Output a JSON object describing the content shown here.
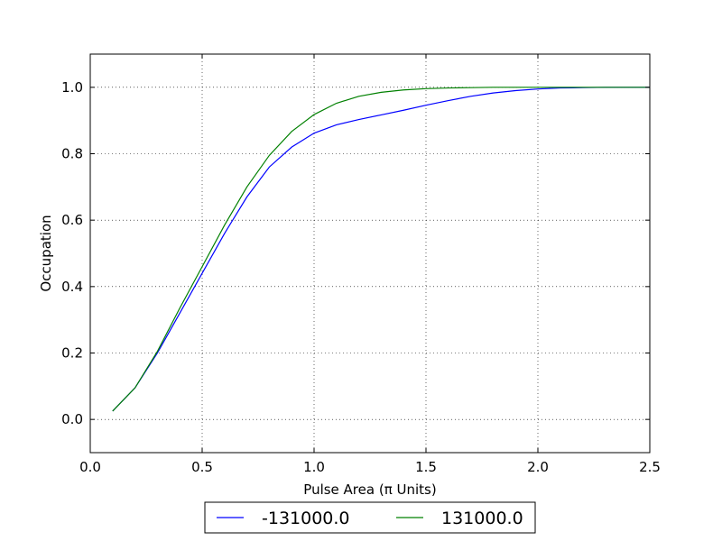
{
  "chart_data": {
    "type": "line",
    "title": "",
    "xlabel": "Pulse Area (π Units)",
    "ylabel": "Occupation",
    "xlim": [
      0.0,
      2.5
    ],
    "ylim": [
      -0.1,
      1.1
    ],
    "x_ticks": [
      "0.0",
      "0.5",
      "1.0",
      "1.5",
      "2.0",
      "2.5"
    ],
    "y_ticks": [
      "0.0",
      "0.2",
      "0.4",
      "0.6",
      "0.8",
      "1.0"
    ],
    "grid": true,
    "legend_placement": "below plot, centered",
    "x": [
      0.1,
      0.2,
      0.3,
      0.4,
      0.5,
      0.6,
      0.7,
      0.8,
      0.9,
      1.0,
      1.1,
      1.2,
      1.3,
      1.4,
      1.5,
      1.6,
      1.7,
      1.8,
      1.9,
      2.0,
      2.1,
      2.2,
      2.3,
      2.4,
      2.5
    ],
    "series": [
      {
        "name": "-131000.0",
        "color": "#0000ff",
        "values": [
          0.025,
          0.095,
          0.2,
          0.32,
          0.44,
          0.56,
          0.67,
          0.76,
          0.82,
          0.862,
          0.887,
          0.903,
          0.917,
          0.931,
          0.946,
          0.96,
          0.973,
          0.983,
          0.99,
          0.995,
          0.998,
          0.999,
          1.0,
          1.0,
          1.0
        ]
      },
      {
        "name": "131000.0",
        "color": "#008000",
        "values": [
          0.025,
          0.095,
          0.205,
          0.335,
          0.46,
          0.585,
          0.7,
          0.795,
          0.867,
          0.918,
          0.952,
          0.973,
          0.985,
          0.992,
          0.996,
          0.998,
          0.999,
          1.0,
          1.0,
          1.0,
          1.0,
          1.0,
          1.0,
          1.0,
          1.0
        ]
      }
    ]
  }
}
